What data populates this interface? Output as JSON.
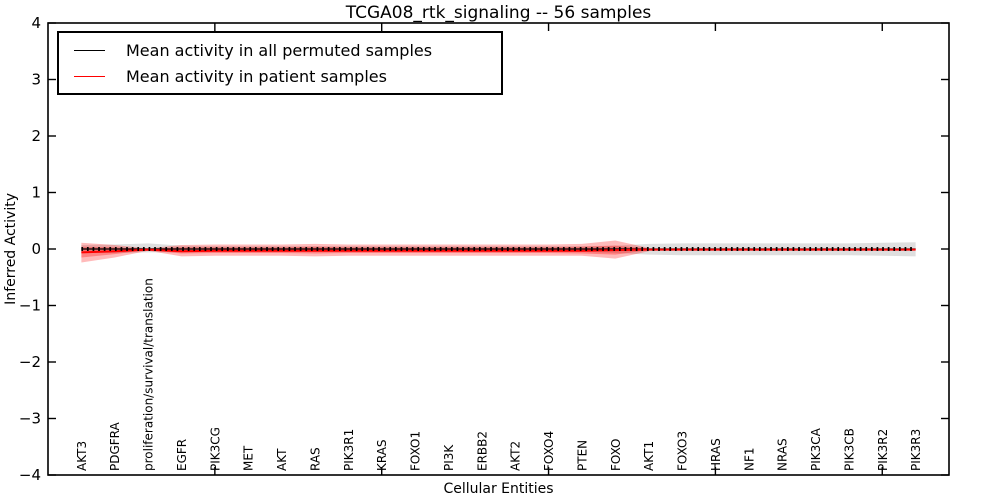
{
  "figure": {
    "title": "TCGA08_rtk_signaling -- 56 samples",
    "xlabel": "Cellular Entities",
    "ylabel": "Inferred Activity"
  },
  "legend": {
    "items": [
      {
        "name": "permuted",
        "label": "Mean activity in all permuted samples",
        "color": "#000000"
      },
      {
        "name": "patient",
        "label": "Mean activity in patient samples",
        "color": "#ff0000"
      }
    ]
  },
  "chart_data": {
    "type": "line",
    "title": "TCGA08_rtk_signaling -- 56 samples",
    "xlabel": "Cellular Entities",
    "ylabel": "Inferred Activity",
    "ylim": [
      -4,
      4
    ],
    "ytick_values": [
      4,
      3,
      2,
      1,
      0,
      -1,
      -2,
      -3,
      -4
    ],
    "ytick_labels": [
      "4",
      "3",
      "2",
      "1",
      "0",
      "−1",
      "−2",
      "−3",
      "−4"
    ],
    "top_tick_category_indexes": [
      4,
      9,
      14,
      19,
      24
    ],
    "grid": false,
    "legend_position": "upper left",
    "categories": [
      "AKT3",
      "PDGFRA",
      "proliferation/survival/translation",
      "EGFR",
      "PIK3CG",
      "MET",
      "AKT",
      "RAS",
      "PIK3R1",
      "KRAS",
      "FOXO1",
      "PI3K",
      "ERBB2",
      "AKT2",
      "FOXO4",
      "PTEN",
      "FOXO",
      "AKT1",
      "FOXO3",
      "HRAS",
      "NF1",
      "NRAS",
      "PIK3CA",
      "PIK3CB",
      "PIK3R2",
      "PIK3R3"
    ],
    "series": [
      {
        "name": "Mean activity in all permuted samples",
        "color": "#000000",
        "values": [
          0,
          0,
          0,
          0,
          0,
          0,
          0,
          0,
          0,
          0,
          0,
          0,
          0,
          0,
          0,
          0,
          0,
          0,
          0,
          0,
          0,
          0,
          0,
          0,
          0,
          0
        ],
        "band": {
          "color": "rgba(0,0,0,0.13)",
          "upper": [
            0.07,
            0.08,
            0.1,
            0.06,
            0.05,
            0.05,
            0.05,
            0.05,
            0.05,
            0.05,
            0.05,
            0.05,
            0.05,
            0.05,
            0.05,
            0.05,
            0.06,
            0.09,
            0.1,
            0.1,
            0.1,
            0.1,
            0.1,
            0.1,
            0.11,
            0.12
          ],
          "lower": [
            -0.07,
            -0.07,
            -0.06,
            -0.06,
            -0.05,
            -0.05,
            -0.05,
            -0.05,
            -0.05,
            -0.05,
            -0.05,
            -0.05,
            -0.05,
            -0.05,
            -0.05,
            -0.05,
            -0.07,
            -0.1,
            -0.11,
            -0.11,
            -0.11,
            -0.11,
            -0.11,
            -0.11,
            -0.12,
            -0.13
          ]
        }
      },
      {
        "name": "Mean activity in patient samples",
        "color": "#ff0000",
        "values": [
          -0.06,
          -0.04,
          -0.01,
          -0.04,
          -0.03,
          -0.03,
          -0.03,
          -0.03,
          -0.03,
          -0.03,
          -0.03,
          -0.03,
          -0.03,
          -0.03,
          -0.03,
          -0.03,
          -0.02,
          -0.01,
          -0.01,
          -0.01,
          -0.01,
          -0.01,
          -0.01,
          -0.01,
          -0.01,
          -0.01
        ],
        "band_outer": {
          "color": "rgba(255,0,0,0.27)",
          "upper": [
            0.11,
            0.07,
            0.01,
            0.07,
            0.08,
            0.08,
            0.08,
            0.09,
            0.08,
            0.08,
            0.08,
            0.08,
            0.08,
            0.08,
            0.08,
            0.09,
            0.15,
            0.02,
            null,
            null,
            null,
            null,
            null,
            null,
            null,
            null
          ],
          "lower": [
            -0.24,
            -0.15,
            -0.03,
            -0.13,
            -0.12,
            -0.12,
            -0.12,
            -0.13,
            -0.12,
            -0.12,
            -0.12,
            -0.12,
            -0.12,
            -0.12,
            -0.12,
            -0.12,
            -0.17,
            -0.04,
            null,
            null,
            null,
            null,
            null,
            null,
            null,
            null
          ]
        },
        "band_inner": {
          "color": "rgba(255,0,0,0.30)",
          "upper": [
            0.04,
            0.03,
            0.0,
            0.03,
            0.03,
            0.03,
            0.03,
            0.04,
            0.03,
            0.03,
            0.03,
            0.03,
            0.03,
            0.03,
            0.03,
            0.04,
            0.06,
            0.01,
            null,
            null,
            null,
            null,
            null,
            null,
            null,
            null
          ],
          "lower": [
            -0.15,
            -0.09,
            -0.02,
            -0.08,
            -0.07,
            -0.07,
            -0.07,
            -0.08,
            -0.07,
            -0.07,
            -0.07,
            -0.07,
            -0.07,
            -0.07,
            -0.07,
            -0.08,
            -0.1,
            -0.02,
            null,
            null,
            null,
            null,
            null,
            null,
            null,
            null
          ]
        }
      }
    ]
  }
}
